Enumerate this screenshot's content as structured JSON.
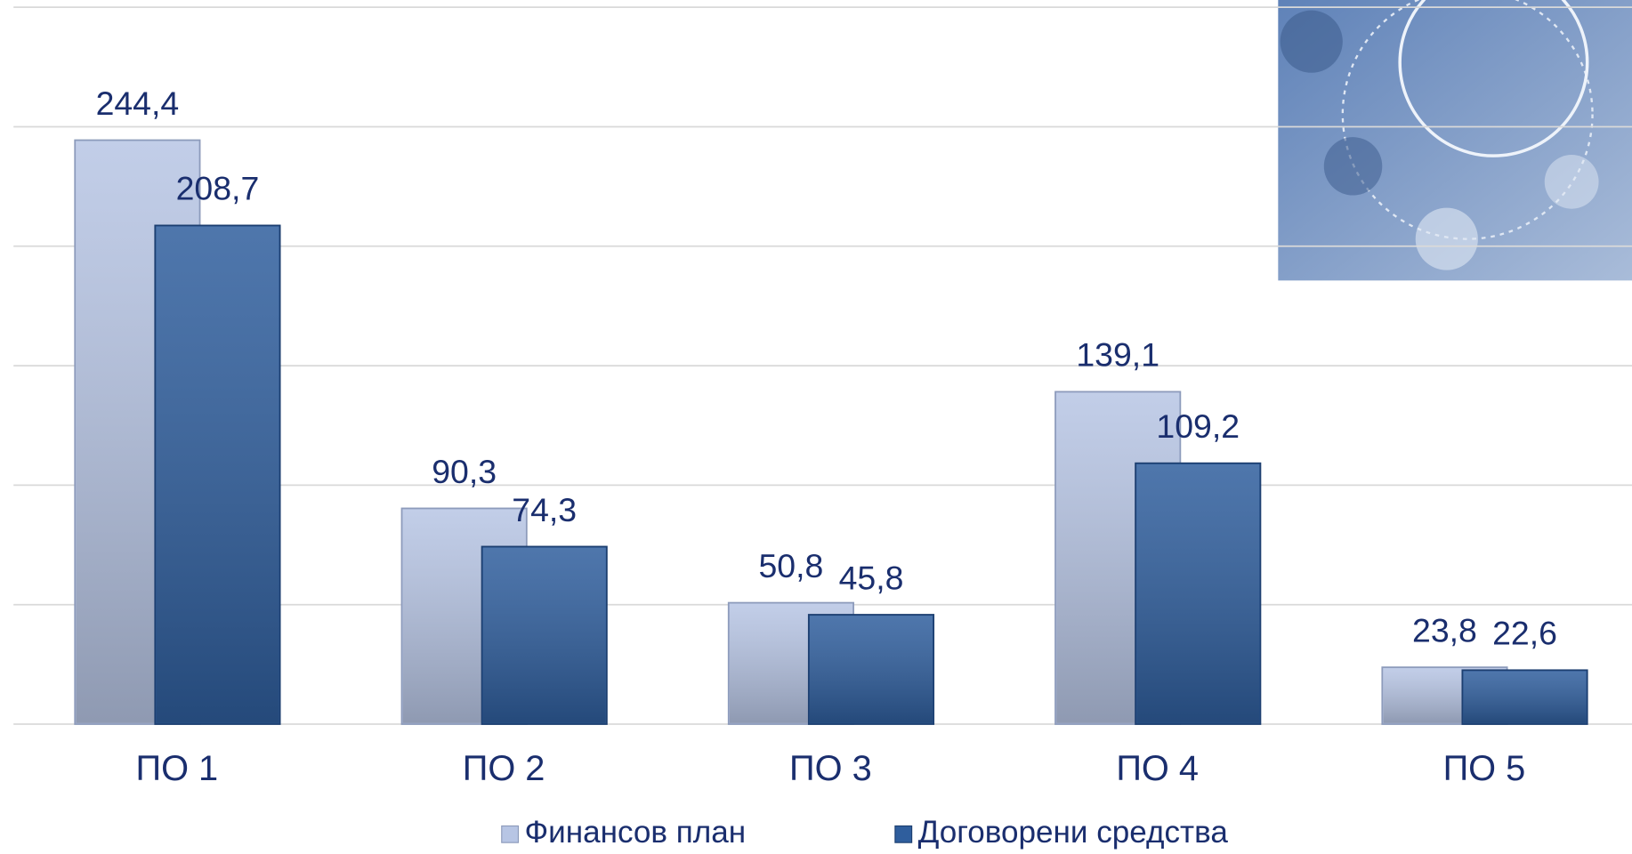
{
  "chart_data": {
    "type": "bar",
    "categories": [
      "ПО 1",
      "ПО 2",
      "ПО 3",
      "ПО 4",
      "ПО 5"
    ],
    "series": [
      {
        "name": "Финансов план",
        "color": "#b7c5e4",
        "values": [
          244.4,
          90.3,
          50.8,
          139.1,
          23.8
        ],
        "value_labels": [
          "244,4",
          "90,3",
          "50,8",
          "139,1",
          "23,8"
        ]
      },
      {
        "name": "Договорени средства",
        "color": "#2f5e9d",
        "values": [
          208.7,
          74.3,
          45.8,
          109.2,
          22.6
        ],
        "value_labels": [
          "208,7",
          "74,3",
          "45,8",
          "109,2",
          "22,6"
        ]
      }
    ],
    "ylim": [
      0,
      300
    ],
    "yticks": [
      0,
      50,
      100,
      150,
      200,
      250,
      300
    ],
    "grid": true,
    "legend": "bottom"
  }
}
